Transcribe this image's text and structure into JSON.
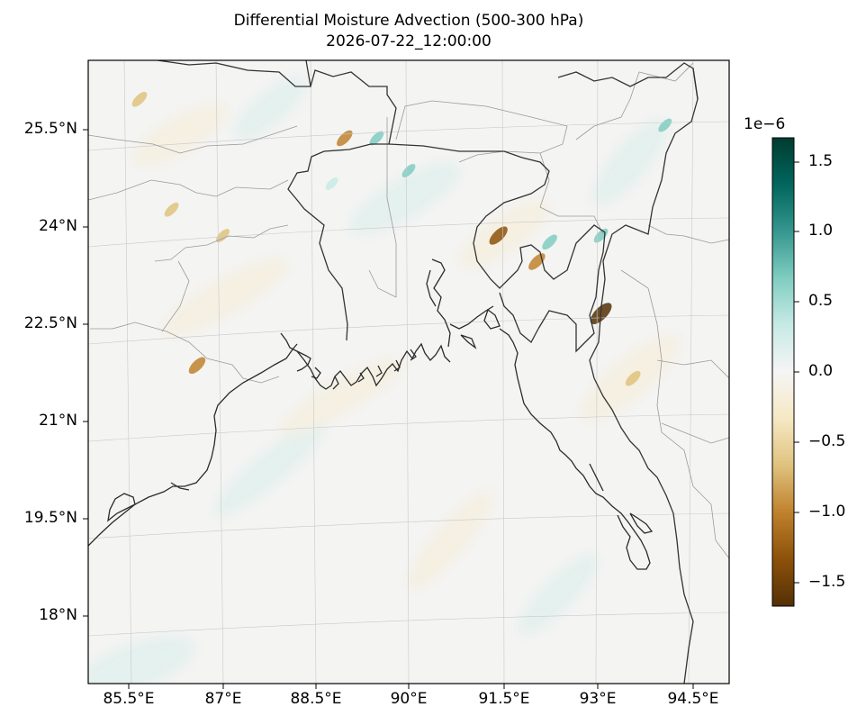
{
  "title": "Differential Moisture Advection (500-300 hPa)",
  "subtitle": "2026-07-22_12:00:00",
  "lon_ticks": [
    "85.5°E",
    "87°E",
    "88.5°E",
    "90°E",
    "91.5°E",
    "93°E",
    "94.5°E"
  ],
  "lat_ticks": [
    "25.5°N",
    "24°N",
    "22.5°N",
    "21°N",
    "19.5°N",
    "18°N"
  ],
  "extent": {
    "lon": [
      84.9,
      94.9
    ],
    "lat": [
      16.9,
      26.5
    ]
  },
  "colorbar": {
    "exponent": "1e−6",
    "ticks": [
      "1.5",
      "1.0",
      "0.5",
      "0.0",
      "−0.5",
      "−1.0",
      "−1.5"
    ],
    "range": [
      -1.7e-06,
      1.7e-06
    ],
    "colormap": "BrBG",
    "colors": [
      "#543005",
      "#8c510a",
      "#bf812d",
      "#dfc27d",
      "#f6e8c3",
      "#f5f5f5",
      "#c7eae5",
      "#80cdc1",
      "#35978f",
      "#01665e",
      "#003c30"
    ]
  },
  "features": [
    "coastline",
    "country borders",
    "state boundaries",
    "lat/lon gridlines"
  ],
  "field_hotspots": [
    {
      "lon": 92.9,
      "lat": 22.6,
      "value": -1.6e-06
    },
    {
      "lon": 91.3,
      "lat": 23.8,
      "value": -1.2e-06
    },
    {
      "lon": 91.9,
      "lat": 23.4,
      "value": -1e-06
    },
    {
      "lon": 86.6,
      "lat": 21.8,
      "value": -1e-06
    },
    {
      "lon": 88.9,
      "lat": 25.3,
      "value": -9e-07
    },
    {
      "lon": 85.7,
      "lat": 25.9,
      "value": -8e-07
    },
    {
      "lon": 86.2,
      "lat": 24.2,
      "value": -7e-07
    },
    {
      "lon": 87.0,
      "lat": 23.8,
      "value": -6e-07
    },
    {
      "lon": 93.4,
      "lat": 21.6,
      "value": -8e-07
    },
    {
      "lon": 92.1,
      "lat": 23.7,
      "value": 8e-07
    },
    {
      "lon": 92.9,
      "lat": 23.8,
      "value": 7e-07
    },
    {
      "lon": 89.4,
      "lat": 25.3,
      "value": 7e-07
    },
    {
      "lon": 89.9,
      "lat": 24.8,
      "value": 6e-07
    },
    {
      "lon": 93.9,
      "lat": 25.5,
      "value": 6e-07
    },
    {
      "lon": 88.7,
      "lat": 24.6,
      "value": 5e-07
    }
  ]
}
